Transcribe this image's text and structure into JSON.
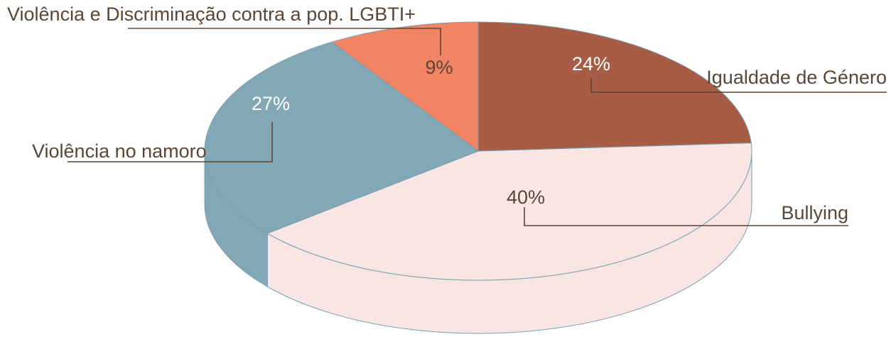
{
  "chart_data": {
    "type": "pie3d",
    "categories": [
      "Igualdade de Género",
      "Bullying",
      "Violência no namoro",
      "Violência e Discriminação contra a pop. LGBTI+"
    ],
    "values": [
      24,
      40,
      27,
      9
    ],
    "value_labels": [
      "24%",
      "40%",
      "27%",
      "9%"
    ],
    "colors": [
      "#a65c45",
      "#f9e6e4",
      "#82a7b5",
      "#f08465"
    ]
  }
}
